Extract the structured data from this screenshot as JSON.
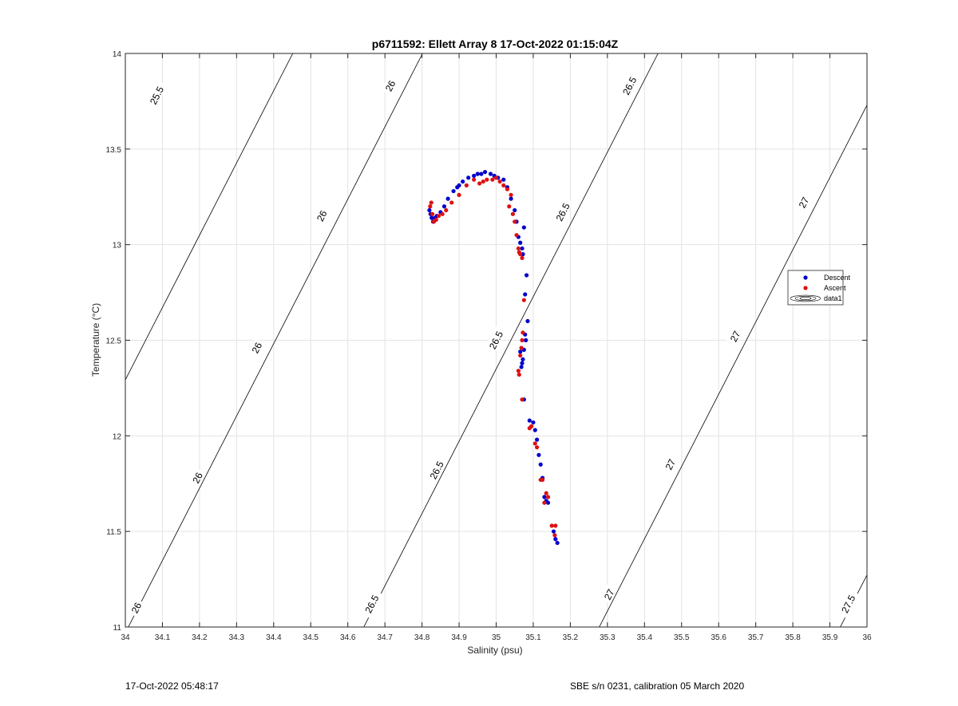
{
  "chart_data": {
    "type": "scatter",
    "title": "p6711592: Ellett Array 8 17-Oct-2022 01:15:04Z",
    "xlabel": "Salinity (psu)",
    "ylabel": "Temperature (°C)",
    "xlim": [
      34,
      36
    ],
    "ylim": [
      11,
      14
    ],
    "xticks": [
      "34",
      "34.1",
      "34.2",
      "34.3",
      "34.4",
      "34.5",
      "34.6",
      "34.7",
      "34.8",
      "34.9",
      "35",
      "35.1",
      "35.2",
      "35.3",
      "35.4",
      "35.5",
      "35.6",
      "35.7",
      "35.8",
      "35.9",
      "36"
    ],
    "yticks": [
      "11",
      "11.5",
      "12",
      "12.5",
      "13",
      "13.5",
      "14"
    ],
    "grid": true,
    "legend_placement": "right",
    "legend": [
      "Descent",
      "Ascent",
      "data1"
    ],
    "series": [
      {
        "name": "Descent",
        "color": "#0000cc",
        "x": [
          34.82,
          34.823,
          34.826,
          34.83,
          34.835,
          34.84,
          34.85,
          34.86,
          34.87,
          34.885,
          34.895,
          34.9,
          34.91,
          34.925,
          34.94,
          34.95,
          34.96,
          34.97,
          34.985,
          34.995,
          35.005,
          35.02,
          35.03,
          35.04,
          35.05,
          35.055,
          35.06,
          35.065,
          35.07,
          35.072,
          35.075,
          35.078,
          35.082,
          35.085,
          35.08,
          35.078,
          35.075,
          35.072,
          35.07,
          35.068,
          35.065,
          35.075,
          35.09,
          35.1,
          35.105,
          35.11,
          35.115,
          35.12,
          35.125,
          35.13,
          35.135,
          35.14,
          35.155,
          35.16,
          35.165
        ],
        "y": [
          13.18,
          13.16,
          13.14,
          13.12,
          13.14,
          13.15,
          13.17,
          13.2,
          13.24,
          13.28,
          13.3,
          13.31,
          13.33,
          13.35,
          13.36,
          13.37,
          13.37,
          13.38,
          13.37,
          13.36,
          13.35,
          13.34,
          13.3,
          13.24,
          13.18,
          13.12,
          13.04,
          13.01,
          12.98,
          12.95,
          13.09,
          12.74,
          12.84,
          12.6,
          12.5,
          12.53,
          12.45,
          12.4,
          12.38,
          12.36,
          12.44,
          12.19,
          12.08,
          12.07,
          12.03,
          11.98,
          11.9,
          11.85,
          11.78,
          11.68,
          11.66,
          11.65,
          11.5,
          11.46,
          11.44
        ],
        "marker": "circle"
      },
      {
        "name": "Ascent",
        "color": "#dd1111",
        "x": [
          34.822,
          34.825,
          34.828,
          34.832,
          34.838,
          34.845,
          34.855,
          34.865,
          34.88,
          34.9,
          34.92,
          34.94,
          34.955,
          34.965,
          34.975,
          34.99,
          35.0,
          35.01,
          35.02,
          35.03,
          35.035,
          35.04,
          35.045,
          35.05,
          35.055,
          35.06,
          35.062,
          35.065,
          35.07,
          35.075,
          35.072,
          35.07,
          35.068,
          35.065,
          35.062,
          35.06,
          35.07,
          35.09,
          35.095,
          35.105,
          35.11,
          35.12,
          35.125,
          35.13,
          35.135,
          35.14,
          35.15,
          35.158,
          35.16
        ],
        "y": [
          13.2,
          13.22,
          13.16,
          13.12,
          13.13,
          13.15,
          13.16,
          13.18,
          13.22,
          13.26,
          13.31,
          13.34,
          13.32,
          13.33,
          13.34,
          13.34,
          13.35,
          13.33,
          13.31,
          13.29,
          13.2,
          13.26,
          13.16,
          13.12,
          13.05,
          12.98,
          12.96,
          12.95,
          12.93,
          12.71,
          12.54,
          12.5,
          12.46,
          12.42,
          12.32,
          12.34,
          12.19,
          12.04,
          12.05,
          11.96,
          11.94,
          11.77,
          11.77,
          11.65,
          11.7,
          11.68,
          11.53,
          11.48,
          11.53
        ],
        "marker": "circle"
      }
    ],
    "contours": [
      {
        "label": "25.5",
        "x_at_ymin": 33.658,
        "slope": 0.2645
      },
      {
        "label": "26",
        "x_at_ymin": 34.008,
        "slope": 0.2645
      },
      {
        "label": "26.5",
        "x_at_ymin": 34.643,
        "slope": 0.2645
      },
      {
        "label": "27",
        "x_at_ymin": 35.278,
        "slope": 0.2645
      },
      {
        "label": "27.5",
        "x_at_ymin": 35.928,
        "slope": 0.2645
      }
    ],
    "contour_labels": [
      {
        "text": "25.5",
        "x": 34.085,
        "y": 13.78
      },
      {
        "text": "26",
        "x": 34.03,
        "y": 11.1
      },
      {
        "text": "26",
        "x": 34.195,
        "y": 11.78
      },
      {
        "text": "26",
        "x": 34.355,
        "y": 12.46
      },
      {
        "text": "26",
        "x": 34.53,
        "y": 13.15
      },
      {
        "text": "26",
        "x": 34.715,
        "y": 13.83
      },
      {
        "text": "26.5",
        "x": 34.665,
        "y": 11.12
      },
      {
        "text": "26.5",
        "x": 34.84,
        "y": 11.82
      },
      {
        "text": "26.5",
        "x": 35.0,
        "y": 12.5
      },
      {
        "text": "26.5",
        "x": 35.18,
        "y": 13.17
      },
      {
        "text": "26.5",
        "x": 35.36,
        "y": 13.83
      },
      {
        "text": "27",
        "x": 35.305,
        "y": 11.17
      },
      {
        "text": "27",
        "x": 35.47,
        "y": 11.85
      },
      {
        "text": "27",
        "x": 35.645,
        "y": 12.52
      },
      {
        "text": "27",
        "x": 35.83,
        "y": 13.22
      },
      {
        "text": "27.5",
        "x": 35.95,
        "y": 11.12
      }
    ]
  },
  "footer": {
    "left": "17-Oct-2022 05:48:17",
    "right": "SBE s/n 0231, calibration 05 March 2020"
  }
}
